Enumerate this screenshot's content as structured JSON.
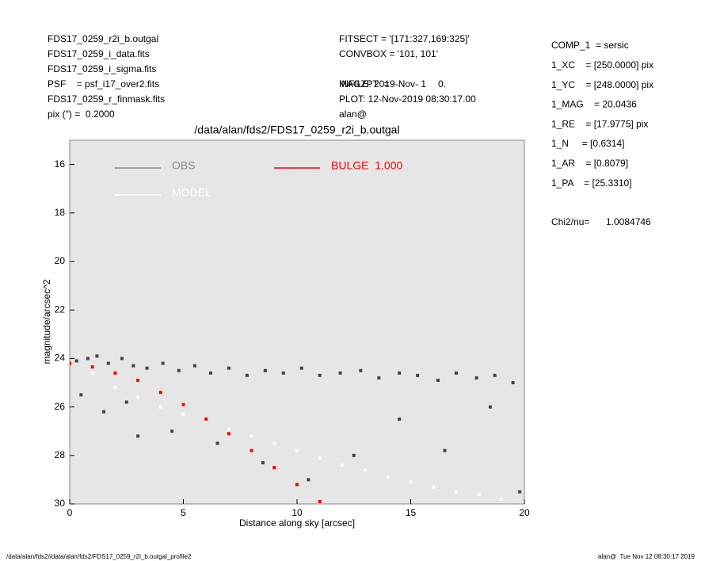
{
  "header": {
    "left": [
      "FDS17_0259_r2i_b.outgal",
      "FDS17_0259_i_data.fits",
      "FDS17_0259_i_sigma.fits",
      "PSF    = psf_i17_over2.fits",
      "FDS17_0259_r_finmask.fits",
      "pix (\") =  0.2000"
    ],
    "middle": [
      "FITSECT = '[171:327,169:325]'",
      "CONVBOX = '101, 101'",
      "INFILE: 2019-Nov- 1",
      "PLOT: 12-Nov-2019 08:30:17.00",
      "alan@"
    ],
    "magzpt": {
      "label": "MAGZPT  =",
      "value": "0."
    },
    "right": [
      "COMP_1  = sersic",
      "1_XC    = [250.0000] pix",
      "1_YC    = [248.0000] pix",
      "1_MAG    = 20.0436",
      "1_RE    = [17.9775] pix",
      "1_N     = [0.6314]",
      "1_AR    = [0.8079]",
      "1_PA    = [25.3310]"
    ],
    "chi2": {
      "label": "Chi2/nu=",
      "value": "1.0084746"
    }
  },
  "footer": {
    "left": "/data/alan/fds2//data/alan/fds2/FDS17_0259_r2i_b.outgal_profile2",
    "right": "alan@  Tue Nov 12 08:30:17 2019"
  },
  "chart_data": {
    "type": "scatter",
    "title": "/data/alan/fds2/FDS17_0259_r2i_b.outgal",
    "x_label": "Distance along sky [arcsec]",
    "y_label": "magnitude/arcsec^2",
    "xlim": [
      0,
      20
    ],
    "xticks": [
      0,
      5,
      10,
      15,
      20
    ],
    "ylim": [
      15,
      30
    ],
    "y_reversed": true,
    "yticks": [
      16,
      18,
      20,
      22,
      24,
      26,
      28,
      30
    ],
    "series": [
      {
        "name": "OBS",
        "color": "#444444",
        "legend_color": "#888888",
        "x": [
          0.3,
          0.8,
          1.2,
          1.7,
          2.3,
          2.8,
          3.4,
          4.1,
          4.8,
          5.5,
          6.2,
          7.0,
          7.8,
          8.6,
          9.4,
          10.2,
          11.0,
          11.9,
          12.8,
          13.6,
          14.5,
          15.3,
          16.2,
          17.0,
          17.9,
          18.7,
          19.5,
          0.5,
          1.5,
          2.5,
          4.5,
          6.5,
          8.5,
          10.5,
          12.5,
          14.5,
          16.5,
          18.5,
          19.8,
          3.0
        ],
        "values": [
          24.1,
          24.0,
          23.9,
          24.2,
          24.0,
          24.3,
          24.4,
          24.2,
          24.5,
          24.3,
          24.6,
          24.4,
          24.7,
          24.5,
          24.6,
          24.4,
          24.7,
          24.6,
          24.5,
          24.8,
          24.6,
          24.7,
          24.9,
          24.6,
          24.8,
          24.7,
          25.0,
          25.5,
          26.2,
          25.8,
          27.0,
          27.5,
          28.3,
          29.0,
          28.0,
          26.5,
          27.8,
          26.0,
          29.5,
          27.2
        ]
      },
      {
        "name": "MODEL",
        "color": "#ffffff",
        "legend_color": "#ffffff",
        "x": [
          1,
          2,
          3,
          4,
          5,
          6,
          7,
          8,
          9,
          10,
          11,
          12,
          13,
          14,
          15,
          16,
          17,
          18,
          19,
          20
        ],
        "values": [
          24.6,
          25.2,
          25.6,
          26.0,
          26.3,
          26.6,
          26.9,
          27.2,
          27.5,
          27.8,
          28.1,
          28.4,
          28.6,
          28.9,
          29.1,
          29.3,
          29.5,
          29.6,
          29.8,
          29.9
        ]
      },
      {
        "name": "BULGE  1.000",
        "color": "#ff0000",
        "legend_color": "#ff0000",
        "x": [
          0,
          1,
          2,
          3,
          4,
          5,
          6,
          7,
          8,
          9,
          10,
          11
        ],
        "values": [
          24.2,
          24.35,
          24.6,
          24.9,
          25.4,
          25.9,
          26.5,
          27.1,
          27.8,
          28.5,
          29.2,
          29.9
        ]
      }
    ]
  }
}
